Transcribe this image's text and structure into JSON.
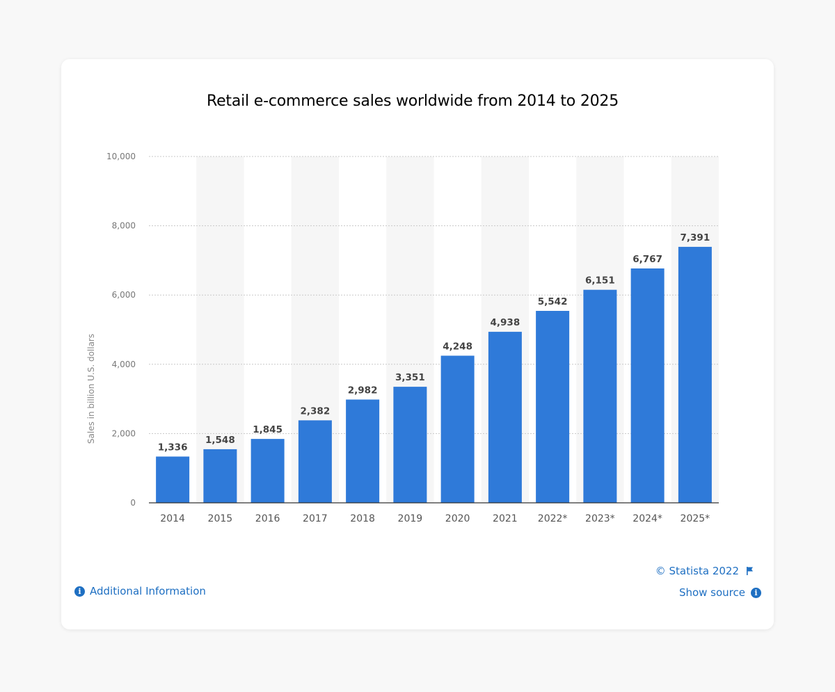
{
  "chart_data": {
    "type": "bar",
    "title": "Retail e-commerce sales worldwide from 2014 to 2025",
    "xlabel": "",
    "ylabel": "Sales in billion U.S. dollars",
    "categories": [
      "2014",
      "2015",
      "2016",
      "2017",
      "2018",
      "2019",
      "2020",
      "2021",
      "2022*",
      "2023*",
      "2024*",
      "2025*"
    ],
    "values": [
      1336,
      1548,
      1845,
      2382,
      2982,
      3351,
      4248,
      4938,
      5542,
      6151,
      6767,
      7391
    ],
    "value_labels": [
      "1,336",
      "1,548",
      "1,845",
      "2,382",
      "2,982",
      "3,351",
      "4,248",
      "4,938",
      "5,542",
      "6,151",
      "6,767",
      "7,391"
    ],
    "ylim": [
      0,
      10000
    ],
    "yticks": [
      0,
      2000,
      4000,
      6000,
      8000,
      10000
    ],
    "ytick_labels": [
      "0",
      "2,000",
      "4,000",
      "6,000",
      "8,000",
      "10,000"
    ],
    "grid": true,
    "bar_color": "#2f7ad9",
    "alt_band_color": "#f6f6f6"
  },
  "footer": {
    "additional_info": "Additional Information",
    "copyright": "© Statista 2022",
    "show_source": "Show source"
  },
  "icons": {
    "info": "info-icon",
    "flag": "flag-icon"
  },
  "colors": {
    "link": "#1e6fc2",
    "bar": "#2f7ad9"
  }
}
